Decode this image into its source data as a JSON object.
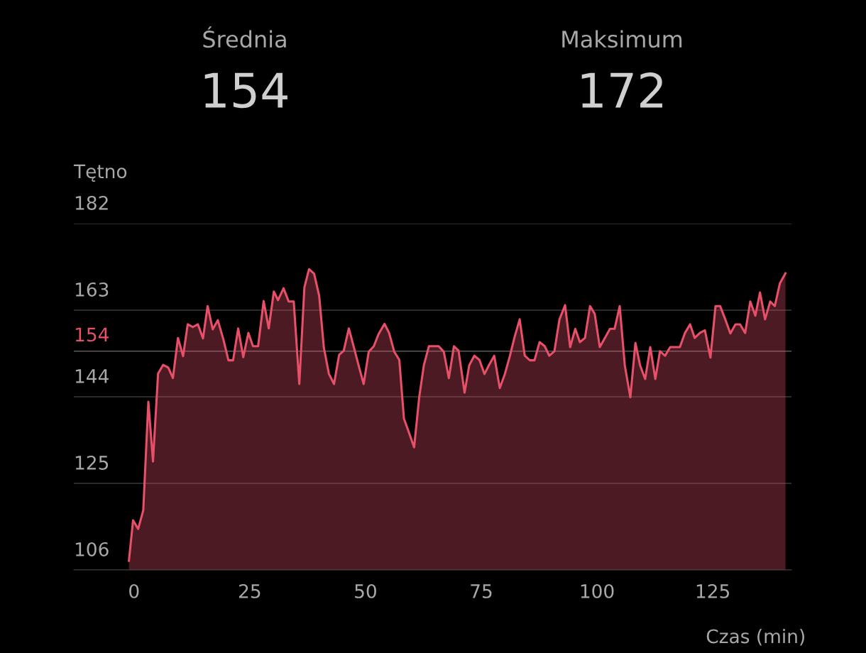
{
  "chart_data": {
    "type": "area",
    "ylabel": "Tętno",
    "xlabel": "Czas (min)",
    "annotations": [
      "Średnia",
      "154",
      "Maksimum",
      "172"
    ],
    "x": [
      -1.1,
      -0.2,
      0.9,
      2.0,
      3.1,
      4.1,
      5.2,
      6.3,
      7.4,
      8.4,
      9.5,
      10.6,
      11.6,
      12.7,
      13.8,
      14.9,
      15.9,
      17.0,
      18.1,
      19.3,
      20.4,
      21.4,
      22.5,
      23.6,
      24.7,
      25.7,
      26.8,
      28.0,
      29.1,
      30.2,
      31.1,
      32.3,
      33.4,
      34.5,
      35.7,
      36.8,
      37.8,
      38.9,
      40.0,
      41.0,
      42.1,
      43.2,
      44.3,
      45.3,
      46.4,
      47.5,
      48.5,
      49.6,
      50.7,
      51.8,
      52.8,
      54.1,
      55.1,
      56.2,
      57.3,
      58.3,
      59.4,
      60.5,
      61.6,
      62.6,
      63.7,
      65.8,
      66.9,
      68.0,
      69.1,
      70.1,
      71.4,
      72.4,
      73.5,
      74.6,
      75.7,
      76.7,
      77.8,
      79.0,
      80.1,
      81.2,
      82.2,
      83.3,
      84.4,
      85.5,
      86.5,
      87.6,
      88.7,
      89.7,
      90.8,
      91.9,
      93.1,
      94.2,
      95.3,
      96.3,
      97.4,
      98.5,
      99.5,
      100.6,
      101.7,
      102.8,
      103.8,
      104.9,
      106.0,
      107.2,
      108.3,
      109.3,
      110.4,
      111.5,
      112.6,
      113.6,
      114.7,
      115.8,
      117.9,
      119.0,
      120.1,
      121.1,
      122.2,
      123.3,
      124.5,
      125.6,
      126.6,
      127.7,
      128.8,
      129.9,
      130.9,
      132.0,
      133.1,
      134.2,
      135.2,
      136.3,
      137.4,
      138.4,
      139.5,
      140.7
    ],
    "series": [
      {
        "color": "#e8506a",
        "values": [
          108.0,
          116.9,
          115.0,
          119.1,
          142.9,
          129.8,
          149.1,
          151.0,
          150.4,
          148.1,
          156.9,
          152.9,
          159.9,
          159.3,
          159.9,
          156.8,
          163.9,
          158.8,
          160.8,
          156.6,
          152.0,
          152.0,
          159.0,
          152.7,
          158.0,
          155.1,
          155.1,
          165.0,
          159.0,
          167.1,
          165.2,
          167.8,
          164.9,
          164.9,
          146.8,
          168.0,
          172.0,
          171.0,
          166.1,
          154.8,
          149.0,
          146.8,
          153.2,
          154.1,
          159.0,
          154.8,
          150.9,
          146.8,
          153.9,
          155.1,
          157.7,
          160.0,
          158.0,
          153.9,
          152.1,
          139.2,
          136.1,
          132.9,
          143.9,
          150.9,
          155.1,
          155.1,
          153.9,
          148.1,
          155.1,
          154.1,
          144.9,
          150.9,
          153.0,
          152.1,
          149.0,
          151.0,
          153.0,
          145.9,
          149.0,
          153.0,
          157.1,
          161.0,
          153.0,
          152.0,
          152.0,
          156.0,
          155.1,
          153.0,
          154.0,
          161.0,
          164.1,
          154.9,
          158.9,
          156.0,
          156.9,
          163.9,
          162.2,
          154.9,
          156.9,
          158.9,
          158.9,
          163.9,
          150.9,
          143.9,
          155.8,
          150.9,
          147.9,
          154.9,
          147.9,
          154.0,
          153.0,
          154.9,
          154.9,
          158.0,
          159.9,
          156.9,
          158.0,
          158.6,
          152.6,
          163.9,
          163.9,
          161.0,
          157.9,
          159.9,
          159.9,
          158.0,
          164.9,
          161.8,
          166.9,
          161.0,
          164.9,
          163.9,
          168.9,
          171.1
        ]
      }
    ],
    "xlim": [
      -13,
      142
    ],
    "xticks": [
      0,
      25,
      50,
      75,
      100,
      125
    ],
    "ylim": [
      106,
      182
    ],
    "yticks": [
      106,
      125,
      144,
      163,
      182
    ],
    "ref_lines": [
      {
        "axis": "y",
        "value": 154,
        "label": "154"
      }
    ],
    "grid": "y",
    "legend": false
  }
}
